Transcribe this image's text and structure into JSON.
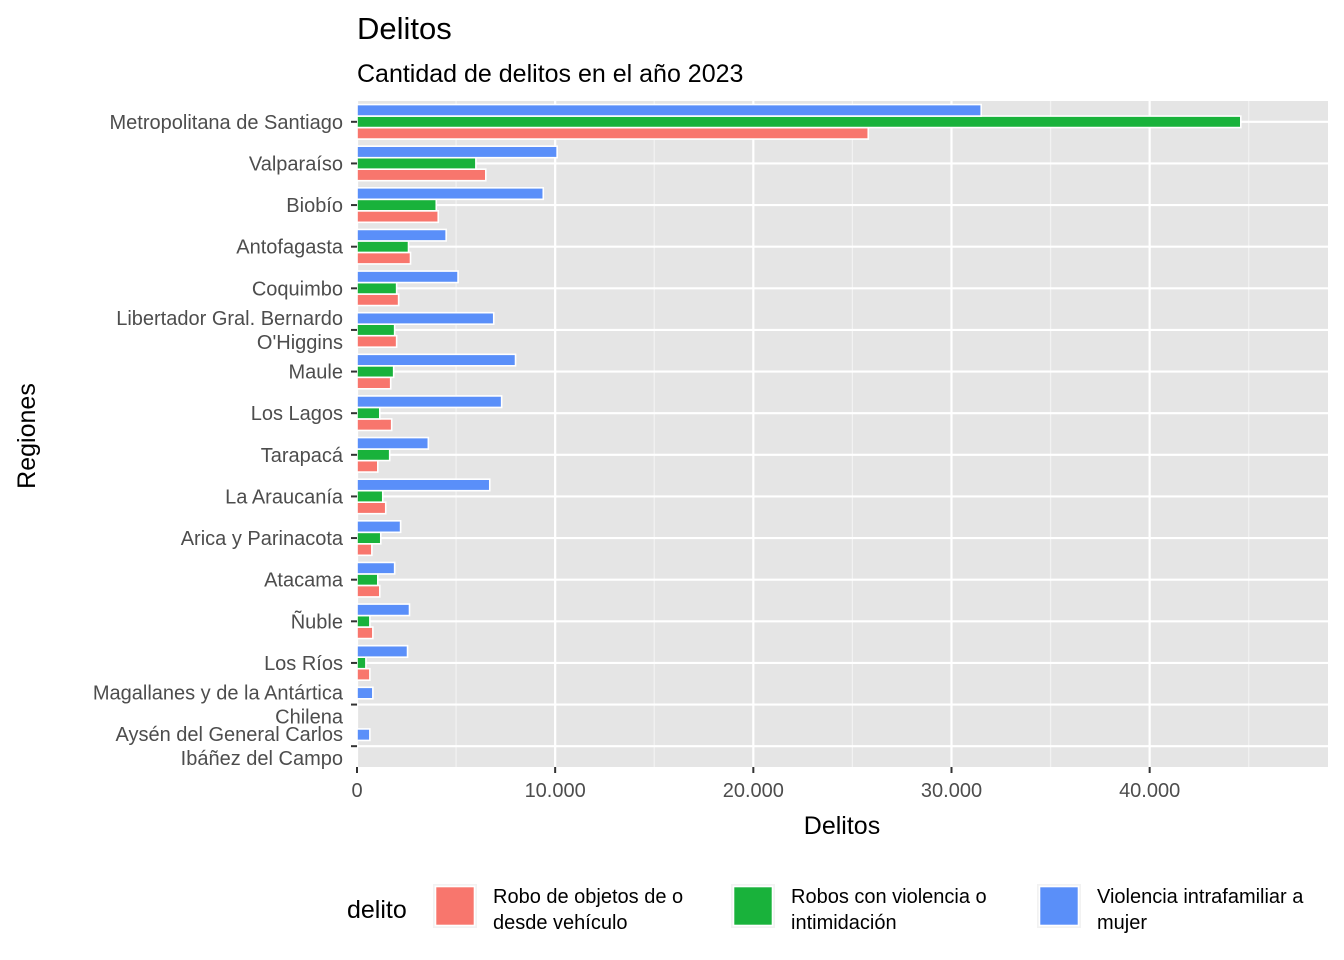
{
  "chart_data": {
    "type": "bar",
    "orientation": "horizontal",
    "title": "Delitos",
    "subtitle": "Cantidad de delitos en el año 2023",
    "xlabel": "Delitos",
    "ylabel": "Regiones",
    "xlim": [
      0,
      49000
    ],
    "x_ticks": [
      0,
      10000,
      20000,
      30000,
      40000
    ],
    "x_tick_labels": [
      "0",
      "10.000",
      "20.000",
      "30.000",
      "40.000"
    ],
    "grid": true,
    "legend_position": "bottom",
    "legend_title": "delito",
    "categories": [
      [
        "Metropolitana de Santiago"
      ],
      [
        "Valparaíso"
      ],
      [
        "Biobío"
      ],
      [
        "Antofagasta"
      ],
      [
        "Coquimbo"
      ],
      [
        "Libertador Gral. Bernardo",
        "O'Higgins"
      ],
      [
        "Maule"
      ],
      [
        "Los Lagos"
      ],
      [
        "Tarapacá"
      ],
      [
        "La Araucanía"
      ],
      [
        "Arica y Parinacota"
      ],
      [
        "Atacama"
      ],
      [
        "Ñuble"
      ],
      [
        "Los Ríos"
      ],
      [
        "Magallanes y de la Antártica",
        "Chilena"
      ],
      [
        "Aysén del General Carlos",
        "Ibáñez del Campo"
      ]
    ],
    "series": [
      {
        "name": [
          "Robo de objetos de o",
          "desde vehículo"
        ],
        "color": "#F8766D",
        "values": [
          25800,
          6500,
          4100,
          2700,
          2100,
          2000,
          1700,
          1750,
          1050,
          1450,
          750,
          1150,
          800,
          650,
          0,
          0
        ]
      },
      {
        "name": [
          "Robos con violencia o",
          "intimidación"
        ],
        "color": "#19B23B",
        "values": [
          44600,
          6000,
          4000,
          2600,
          2000,
          1900,
          1850,
          1150,
          1650,
          1300,
          1200,
          1050,
          650,
          450,
          0,
          0
        ]
      },
      {
        "name": [
          "Violencia intrafamiliar a",
          "mujer"
        ],
        "color": "#5A8FF9",
        "values": [
          31500,
          10100,
          9400,
          4500,
          5100,
          6900,
          8000,
          7300,
          3600,
          6700,
          2200,
          1900,
          2650,
          2550,
          800,
          650
        ]
      }
    ]
  }
}
